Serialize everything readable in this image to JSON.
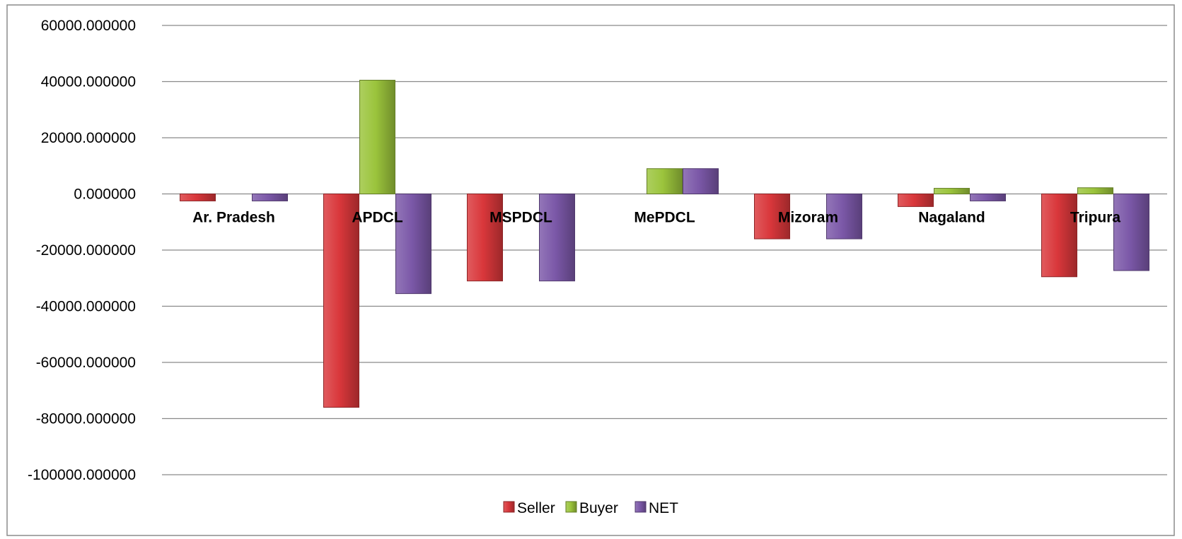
{
  "chart_data": {
    "type": "bar",
    "categories": [
      "Ar. Pradesh",
      "APDCL",
      "MSPDCL",
      "MePDCL",
      "Mizoram",
      "Nagaland",
      "Tripura"
    ],
    "series": [
      {
        "name": "Seller",
        "color": "#d9373b",
        "values": [
          -2500,
          -76000,
          -31000,
          0,
          -16000,
          -4500,
          -29500
        ]
      },
      {
        "name": "Buyer",
        "color": "#9bc43c",
        "values": [
          0,
          40500,
          0,
          9000,
          0,
          2000,
          2200
        ]
      },
      {
        "name": "NET",
        "color": "#7b58a8",
        "values": [
          -2500,
          -35500,
          -31000,
          9000,
          -16000,
          -2500,
          -27300
        ]
      }
    ],
    "y_ticks": [
      "60000.000000",
      "40000.000000",
      "20000.000000",
      "0.000000",
      "-20000.000000",
      "-40000.000000",
      "-60000.000000",
      "-80000.000000",
      "-100000.000000"
    ],
    "ylim": [
      -100000,
      60000
    ],
    "grid": true,
    "legend_position": "bottom-center"
  }
}
